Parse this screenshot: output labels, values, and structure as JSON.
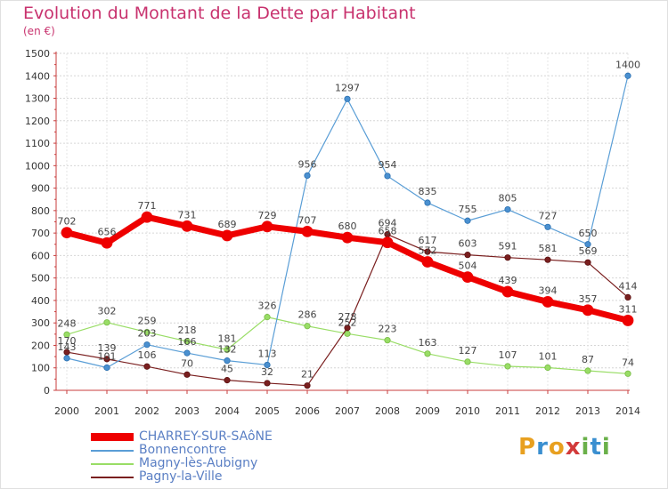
{
  "title": "Evolution du Montant de la Dette par Habitant",
  "subtitle": "(en €)",
  "logo": {
    "letters": [
      "P",
      "r",
      "o",
      "x",
      "i",
      "t",
      "i"
    ],
    "colors": [
      "#e8a020",
      "#3a8fd0",
      "#e8a020",
      "#d23a3a",
      "#6ab04a",
      "#3a8fd0",
      "#6ab04a"
    ]
  },
  "chart_data": {
    "type": "line",
    "x": [
      "2000",
      "2001",
      "2002",
      "2003",
      "2004",
      "2005",
      "2006",
      "2007",
      "2008",
      "2009",
      "2010",
      "2011",
      "2012",
      "2013",
      "2014"
    ],
    "ylim": [
      0,
      1500
    ],
    "yticks": [
      0,
      100,
      200,
      300,
      400,
      500,
      600,
      700,
      800,
      900,
      1000,
      1100,
      1200,
      1300,
      1400,
      1500
    ],
    "grid": true,
    "legend_position": "bottom-left",
    "series": [
      {
        "name": "CHARREY-SUR-SAôNE",
        "color": "#ee0000",
        "values": [
          702,
          656,
          771,
          731,
          689,
          729,
          707,
          680,
          658,
          572,
          504,
          439,
          394,
          357,
          311
        ]
      },
      {
        "name": "Bonnencontre",
        "color": "#5a9ed6",
        "values": [
          143,
          101,
          203,
          166,
          132,
          113,
          956,
          1297,
          954,
          835,
          755,
          805,
          727,
          650,
          1400
        ]
      },
      {
        "name": "Magny-lès-Aubigny",
        "color": "#99dd66",
        "values": [
          248,
          302,
          259,
          218,
          181,
          326,
          286,
          252,
          223,
          163,
          127,
          107,
          101,
          87,
          74
        ]
      },
      {
        "name": "Pagny-la-Ville",
        "color": "#7a1f1f",
        "values": [
          170,
          139,
          106,
          70,
          45,
          32,
          21,
          278,
          694,
          617,
          603,
          591,
          581,
          569,
          414
        ]
      }
    ]
  }
}
